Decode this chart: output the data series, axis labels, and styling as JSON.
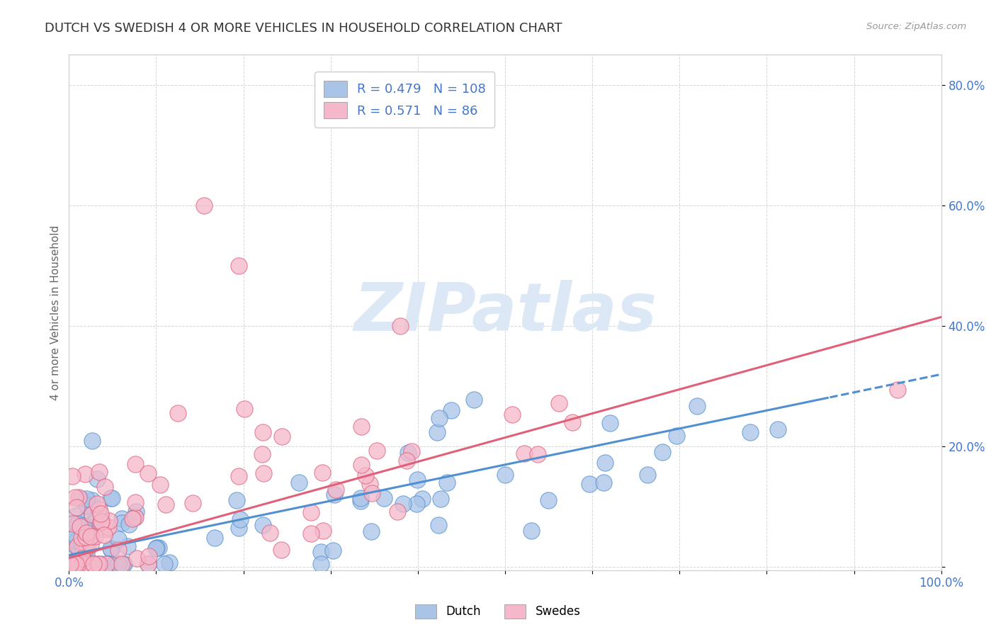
{
  "title": "DUTCH VS SWEDISH 4 OR MORE VEHICLES IN HOUSEHOLD CORRELATION CHART",
  "source_text": "Source: ZipAtlas.com",
  "ylabel": "4 or more Vehicles in Household",
  "xlim": [
    0.0,
    1.0
  ],
  "ylim": [
    -0.005,
    0.85
  ],
  "dutch_R": 0.479,
  "dutch_N": 108,
  "swedes_R": 0.571,
  "swedes_N": 86,
  "dutch_color": "#aac4e8",
  "swedes_color": "#f5b8ca",
  "dutch_line_color": "#5090d0",
  "swedes_line_color": "#e0607a",
  "background_color": "#ffffff",
  "grid_color": "#cccccc",
  "title_color": "#333333",
  "axis_label_color": "#4477cc",
  "watermark": "ZIPatlas",
  "watermark_color": "#dce8f5"
}
